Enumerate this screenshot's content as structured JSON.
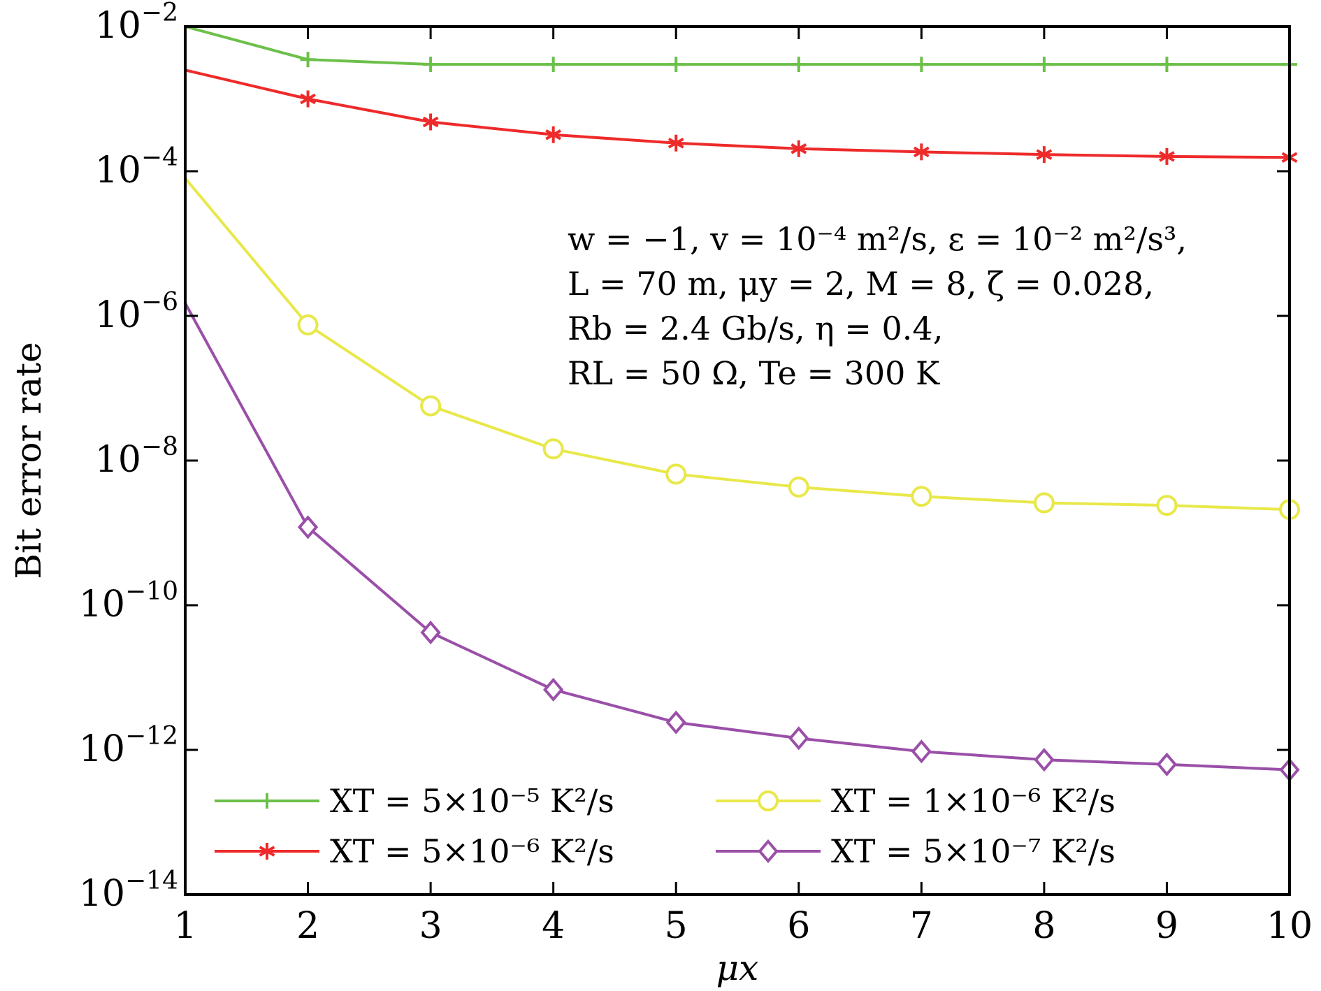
{
  "chart_data": {
    "type": "line",
    "xlabel": "μx",
    "ylabel": "Bit error rate",
    "xlim": [
      1,
      10
    ],
    "ylim_exponent": [
      -14,
      -2
    ],
    "yscale": "log",
    "x": [
      1,
      2,
      3,
      4,
      5,
      6,
      7,
      8,
      9,
      10
    ],
    "x_tick_labels": [
      "1",
      "2",
      "3",
      "4",
      "5",
      "6",
      "7",
      "8",
      "9",
      "10"
    ],
    "y_tick_labels": [
      {
        "exp": -2,
        "text": "10",
        "sup": "−2"
      },
      {
        "exp": -4,
        "text": "10",
        "sup": "−4"
      },
      {
        "exp": -6,
        "text": "10",
        "sup": "−6"
      },
      {
        "exp": -8,
        "text": "10",
        "sup": "−8"
      },
      {
        "exp": -10,
        "text": "10",
        "sup": "−10"
      },
      {
        "exp": -12,
        "text": "10",
        "sup": "−12"
      },
      {
        "exp": -14,
        "text": "10",
        "sup": "−14"
      }
    ],
    "grid": false,
    "legend_position": "bottom",
    "series": [
      {
        "name": "XT = 5×10⁻⁵ K²/s",
        "color": "#6cc04a",
        "marker": "plus",
        "values": [
          0.01,
          0.0035,
          0.003,
          0.003,
          0.003,
          0.003,
          0.003,
          0.003,
          0.003,
          0.003
        ]
      },
      {
        "name": "XT = 5×10⁻⁶ K²/s",
        "color": "#ee2a2a",
        "marker": "asterisk",
        "values": [
          0.0025,
          0.001,
          0.00048,
          0.00032,
          0.000245,
          0.000205,
          0.000185,
          0.00017,
          0.00016,
          0.000155
        ]
      },
      {
        "name": "XT = 1×10⁻⁶ K²/s",
        "color": "#e8e84a",
        "marker": "circle",
        "values": [
          8e-05,
          7.5e-07,
          5.7e-08,
          1.45e-08,
          6.5e-09,
          4.3e-09,
          3.2e-09,
          2.6e-09,
          2.4e-09,
          2.1e-09
        ]
      },
      {
        "name": "XT = 5×10⁻⁷ K²/s",
        "color": "#9a4fa8",
        "marker": "diamond",
        "values": [
          1.5e-06,
          1.2e-09,
          4.2e-11,
          6.8e-12,
          2.4e-12,
          1.45e-12,
          9.5e-13,
          7.3e-13,
          6.3e-13,
          5.3e-13
        ]
      }
    ],
    "annotation_lines": [
      "w = −1,  v = 10⁻⁴ m²/s,  ε = 10⁻² m²/s³,",
      "L = 70 m,  μy = 2,  M = 8,  ζ = 0.028,",
      "Rb = 2.4 Gb/s,  η = 0.4,",
      "RL = 50 Ω,  Te = 300 K"
    ]
  }
}
